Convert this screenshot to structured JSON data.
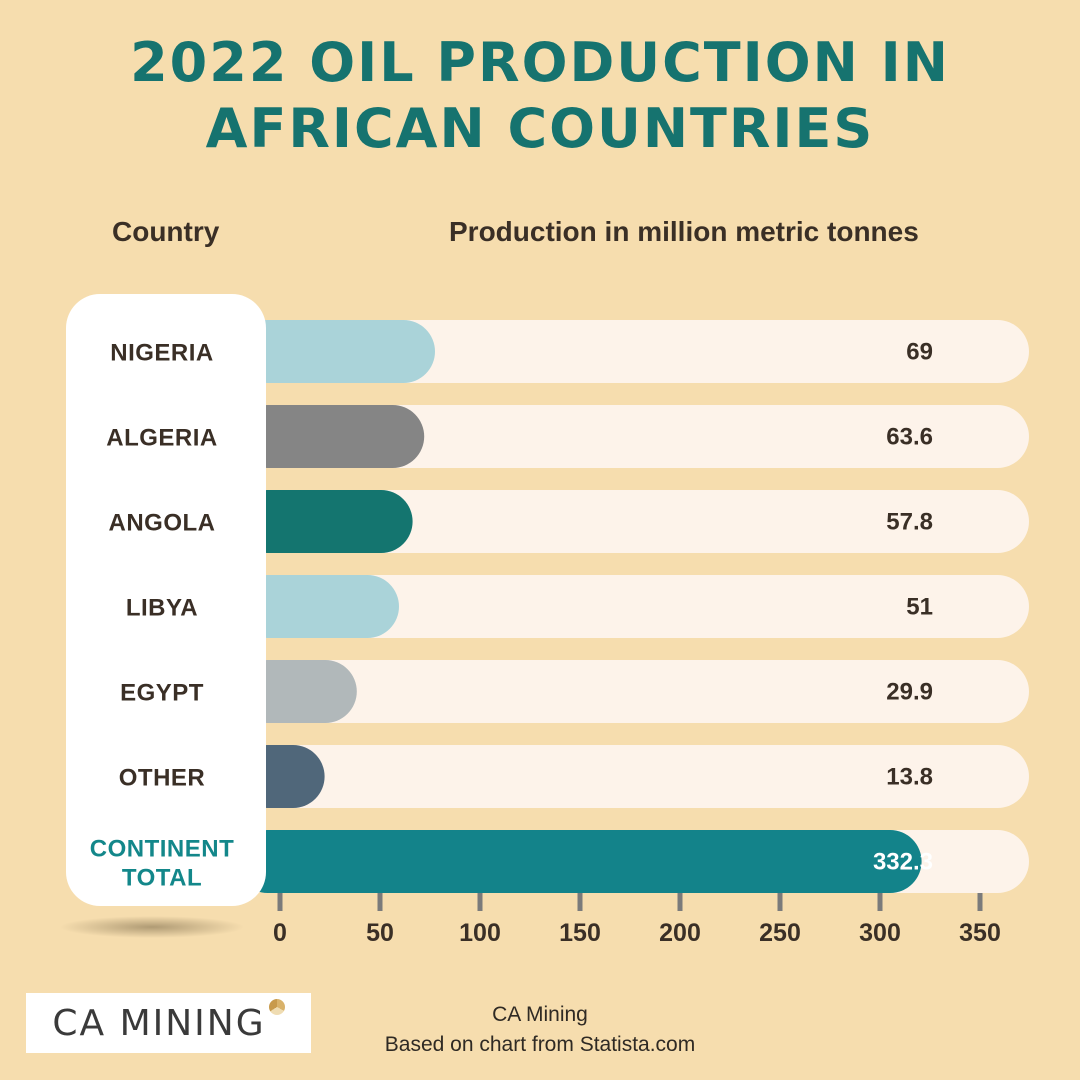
{
  "title_line1": "2022 OIL PRODUCTION IN",
  "title_line2": "AFRICAN COUNTRIES",
  "col_country": "Country",
  "col_production": "Production in million metric tonnes",
  "logo_text": "CA MINING",
  "credit_line1": "CA Mining",
  "credit_line2": "Based on chart from Statista.com",
  "colors": {
    "background": "#f6ddae",
    "title": "#16736f",
    "track": "#fdf3ea",
    "label_panel": "#ffffff",
    "total_label": "#13878a",
    "text_dark": "#3a2f26"
  },
  "chart_data": {
    "type": "bar",
    "orientation": "horizontal",
    "xlabel": "Production in million metric tonnes",
    "ylabel": "Country",
    "xlim": [
      0,
      350
    ],
    "xticks": [
      0,
      50,
      100,
      150,
      200,
      250,
      300,
      350
    ],
    "categories": [
      {
        "label": "NIGERIA",
        "value": 69,
        "display": "69",
        "color": "#aad3d9"
      },
      {
        "label": "ALGERIA",
        "value": 63.6,
        "display": "63.6",
        "color": "#858585"
      },
      {
        "label": "ANGOLA",
        "value": 57.8,
        "display": "57.8",
        "color": "#14756f"
      },
      {
        "label": "LIBYA",
        "value": 51,
        "display": "51",
        "color": "#aad3d9"
      },
      {
        "label": "EGYPT",
        "value": 29.9,
        "display": "29.9",
        "color": "#b1b8ba"
      },
      {
        "label": "OTHER",
        "value": 13.8,
        "display": "13.8",
        "color": "#50677a"
      },
      {
        "label": "CONTINENT TOTAL",
        "value": 332.3,
        "display": "332.3",
        "color": "#13838a",
        "total": true
      }
    ]
  }
}
